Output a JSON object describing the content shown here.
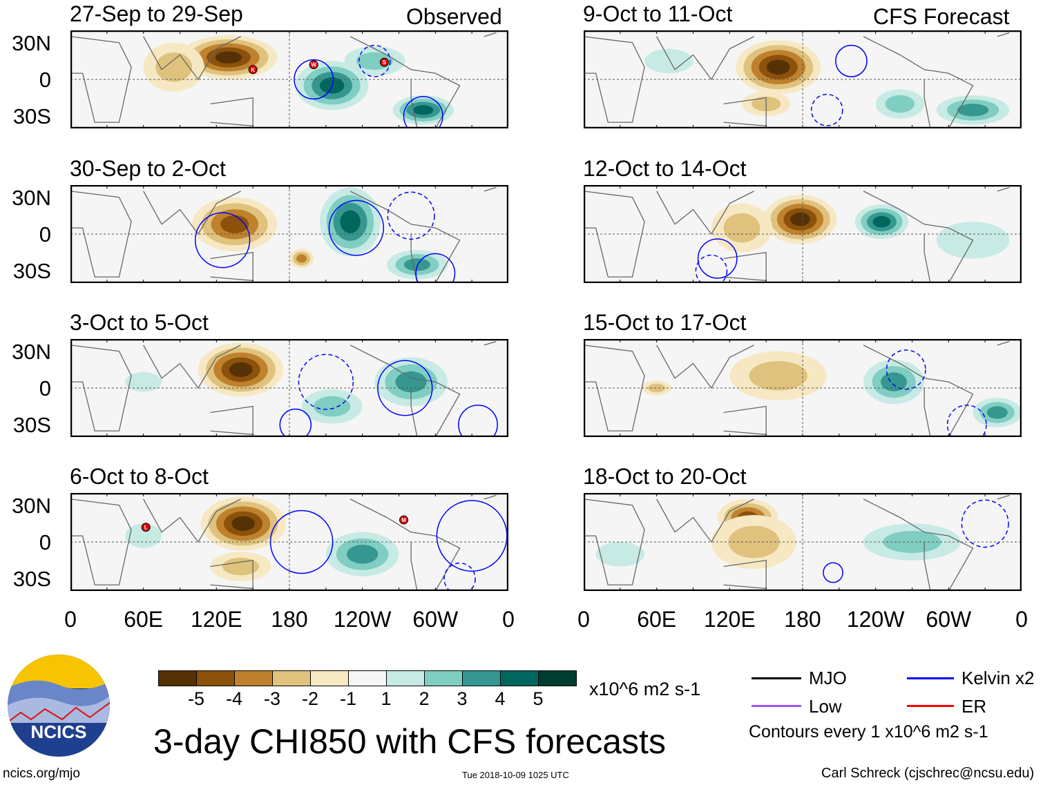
{
  "header": {
    "left_label": "Observed",
    "right_label": "CFS Forecast"
  },
  "lat_labels": [
    "30N",
    "0",
    "30S"
  ],
  "lon_labels": [
    "0",
    "60E",
    "120E",
    "180",
    "120W",
    "60W",
    "0"
  ],
  "colors": [
    "#553106",
    "#8c510a",
    "#bf812d",
    "#dfc27d",
    "#f6e8c3",
    "#f5f5f5",
    "#c7eae5",
    "#80cdc1",
    "#35978f",
    "#01665e",
    "#003c30"
  ],
  "colorbar": {
    "labels": [
      "-5",
      "-4",
      "-3",
      "-2",
      "-1",
      "1",
      "2",
      "3",
      "4",
      "5"
    ],
    "units": "x10^6 m2 s-1"
  },
  "panels": [
    {
      "title": "27-Sep to 29-Sep",
      "features": [
        {
          "lon": 130,
          "lat": 18,
          "rx": 40,
          "ry": 18,
          "v": -5
        },
        {
          "lon": 85,
          "lat": 10,
          "rx": 25,
          "ry": 20,
          "v": -2
        },
        {
          "lon": 215,
          "lat": -5,
          "rx": 30,
          "ry": 20,
          "v": 4
        },
        {
          "lon": 290,
          "lat": -25,
          "rx": 25,
          "ry": 12,
          "v": 4
        },
        {
          "lon": 250,
          "lat": 15,
          "rx": 25,
          "ry": 12,
          "v": 2
        }
      ],
      "contours": [
        {
          "lon": 200,
          "lat": 0,
          "r": 10,
          "dash": false
        },
        {
          "lon": 250,
          "lat": 15,
          "r": 8,
          "dash": true
        },
        {
          "lon": 290,
          "lat": -30,
          "r": 10,
          "dash": false
        }
      ],
      "storms": [
        {
          "id": "K",
          "lon": 150,
          "lat": 8
        },
        {
          "id": "W",
          "lon": 200,
          "lat": 12
        },
        {
          "id": "S",
          "lon": 258,
          "lat": 14
        }
      ]
    },
    {
      "title": "9-Oct to 11-Oct",
      "features": [
        {
          "lon": 160,
          "lat": 10,
          "rx": 35,
          "ry": 22,
          "v": -5
        },
        {
          "lon": 150,
          "lat": -20,
          "rx": 20,
          "ry": 10,
          "v": -2
        },
        {
          "lon": 320,
          "lat": -25,
          "rx": 30,
          "ry": 12,
          "v": 3
        },
        {
          "lon": 260,
          "lat": -20,
          "rx": 20,
          "ry": 12,
          "v": 2
        },
        {
          "lon": 70,
          "lat": 15,
          "rx": 20,
          "ry": 10,
          "v": 1
        }
      ],
      "contours": [
        {
          "lon": 200,
          "lat": -25,
          "r": 8,
          "dash": true
        },
        {
          "lon": 220,
          "lat": 15,
          "r": 8,
          "dash": false
        }
      ],
      "storms": []
    },
    {
      "title": "30-Sep to 2-Oct",
      "features": [
        {
          "lon": 135,
          "lat": 8,
          "rx": 35,
          "ry": 22,
          "v": -4
        },
        {
          "lon": 230,
          "lat": 10,
          "rx": 25,
          "ry": 28,
          "v": 4
        },
        {
          "lon": 285,
          "lat": -25,
          "rx": 25,
          "ry": 12,
          "v": 3
        },
        {
          "lon": 190,
          "lat": -20,
          "rx": 10,
          "ry": 8,
          "v": -3
        }
      ],
      "contours": [
        {
          "lon": 235,
          "lat": 5,
          "r": 14,
          "dash": false
        },
        {
          "lon": 125,
          "lat": -5,
          "r": 14,
          "dash": false
        },
        {
          "lon": 300,
          "lat": -32,
          "r": 10,
          "dash": false
        },
        {
          "lon": 280,
          "lat": 15,
          "r": 12,
          "dash": true
        }
      ],
      "storms": []
    },
    {
      "title": "12-Oct to 14-Oct",
      "features": [
        {
          "lon": 178,
          "lat": 12,
          "rx": 30,
          "ry": 20,
          "v": -5
        },
        {
          "lon": 130,
          "lat": 5,
          "rx": 25,
          "ry": 20,
          "v": -2
        },
        {
          "lon": 245,
          "lat": 10,
          "rx": 22,
          "ry": 14,
          "v": 4
        },
        {
          "lon": 320,
          "lat": -5,
          "rx": 30,
          "ry": 15,
          "v": 1
        }
      ],
      "contours": [
        {
          "lon": 110,
          "lat": -20,
          "r": 10,
          "dash": false
        },
        {
          "lon": 105,
          "lat": -30,
          "r": 8,
          "dash": true
        }
      ],
      "storms": []
    },
    {
      "title": "3-Oct to 5-Oct",
      "features": [
        {
          "lon": 140,
          "lat": 15,
          "rx": 35,
          "ry": 22,
          "v": -5
        },
        {
          "lon": 280,
          "lat": 5,
          "rx": 30,
          "ry": 20,
          "v": 3
        },
        {
          "lon": 215,
          "lat": -15,
          "rx": 25,
          "ry": 14,
          "v": 2
        },
        {
          "lon": 60,
          "lat": 5,
          "rx": 15,
          "ry": 8,
          "v": 1
        }
      ],
      "contours": [
        {
          "lon": 275,
          "lat": 0,
          "r": 14,
          "dash": false
        },
        {
          "lon": 185,
          "lat": -30,
          "r": 8,
          "dash": false
        },
        {
          "lon": 335,
          "lat": -30,
          "r": 10,
          "dash": false
        },
        {
          "lon": 210,
          "lat": 5,
          "r": 14,
          "dash": true
        }
      ],
      "storms": []
    },
    {
      "title": "15-Oct to 17-Oct",
      "features": [
        {
          "lon": 160,
          "lat": 10,
          "rx": 40,
          "ry": 20,
          "v": -2
        },
        {
          "lon": 60,
          "lat": 0,
          "rx": 12,
          "ry": 6,
          "v": -2
        },
        {
          "lon": 255,
          "lat": 5,
          "rx": 25,
          "ry": 18,
          "v": 3
        },
        {
          "lon": 340,
          "lat": -20,
          "rx": 20,
          "ry": 12,
          "v": 3
        }
      ],
      "contours": [
        {
          "lon": 265,
          "lat": 15,
          "r": 10,
          "dash": true
        },
        {
          "lon": 315,
          "lat": -30,
          "r": 10,
          "dash": true
        }
      ],
      "storms": []
    },
    {
      "title": "6-Oct to 8-Oct",
      "features": [
        {
          "lon": 142,
          "lat": 15,
          "rx": 35,
          "ry": 22,
          "v": -5
        },
        {
          "lon": 140,
          "lat": -20,
          "rx": 25,
          "ry": 12,
          "v": -2
        },
        {
          "lon": 240,
          "lat": -10,
          "rx": 30,
          "ry": 18,
          "v": 3
        },
        {
          "lon": 60,
          "lat": 5,
          "rx": 15,
          "ry": 10,
          "v": 1
        }
      ],
      "contours": [
        {
          "lon": 190,
          "lat": 0,
          "r": 16,
          "dash": false
        },
        {
          "lon": 320,
          "lat": -30,
          "r": 8,
          "dash": true
        },
        {
          "lon": 330,
          "lat": 5,
          "r": 18,
          "dash": false
        }
      ],
      "storms": [
        {
          "id": "L",
          "lon": 62,
          "lat": 12
        },
        {
          "id": "M",
          "lon": 274,
          "lat": 18
        }
      ]
    },
    {
      "title": "18-Oct to 20-Oct",
      "features": [
        {
          "lon": 135,
          "lat": 20,
          "rx": 25,
          "ry": 15,
          "v": -4
        },
        {
          "lon": 140,
          "lat": 0,
          "rx": 35,
          "ry": 22,
          "v": -2
        },
        {
          "lon": 270,
          "lat": 0,
          "rx": 40,
          "ry": 15,
          "v": 2
        },
        {
          "lon": 30,
          "lat": -10,
          "rx": 20,
          "ry": 10,
          "v": 1
        }
      ],
      "contours": [
        {
          "lon": 205,
          "lat": -25,
          "r": 5,
          "dash": false
        },
        {
          "lon": 330,
          "lat": 15,
          "r": 12,
          "dash": true
        }
      ],
      "storms": []
    }
  ],
  "legend": {
    "items": [
      {
        "label": "MJO",
        "color": "#000000"
      },
      {
        "label": "Kelvin x2",
        "color": "#0000ff"
      },
      {
        "label": "Low",
        "color": "#9955ee"
      },
      {
        "label": "ER",
        "color": "#ff0000"
      }
    ],
    "note": "Contours every 1 x10^6 m2 s-1"
  },
  "footer": {
    "title": "3-day CHI850 with CFS forecasts",
    "logo": "NCICS",
    "url": "ncics.org/mjo",
    "timestamp": "Tue 2018-10-09 1025 UTC",
    "author": "Carl Schreck (cjschrec@ncsu.edu)"
  }
}
